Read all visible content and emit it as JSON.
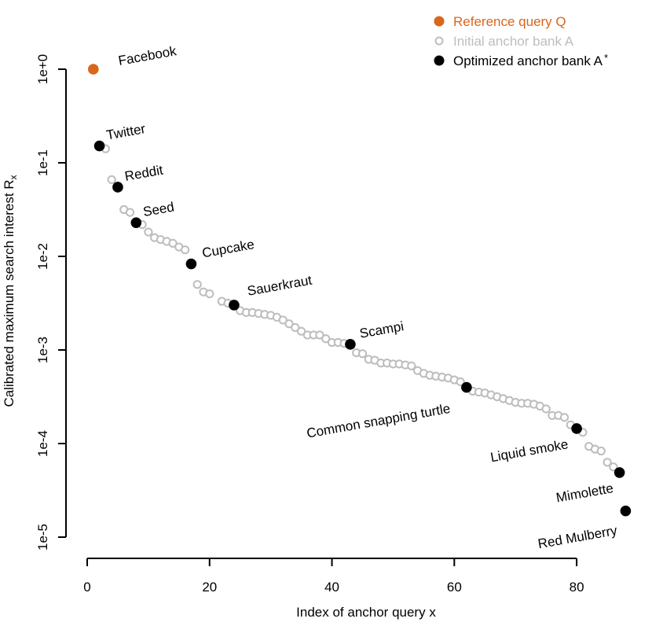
{
  "chart_data": {
    "type": "scatter",
    "title": "",
    "xlabel": "Index of anchor query x",
    "ylabel": "Calibrated maximum search interest R",
    "ylabel_subscript": "x",
    "xlim": [
      0,
      90
    ],
    "ylim_log10": [
      -5,
      0
    ],
    "x_ticks": [
      0,
      20,
      40,
      60,
      80
    ],
    "x_tick_labels": [
      "0",
      "20",
      "40",
      "60",
      "80"
    ],
    "y_ticks_log10": [
      0,
      -1,
      -2,
      -3,
      -4,
      -5
    ],
    "y_tick_labels": [
      "1e+0",
      "1e-1",
      "1e-2",
      "1e-3",
      "1e-4",
      "1e-5"
    ],
    "colors": {
      "reference": "#d9661a",
      "initial": "#bdbdbd",
      "optimized": "#000000"
    },
    "legend": {
      "position": "top-right",
      "items": [
        {
          "label": "Reference query Q",
          "color": "#d9661a",
          "style": "filled"
        },
        {
          "label": "Initial anchor bank A",
          "color": "#bdbdbd",
          "style": "open"
        },
        {
          "label": "Optimized anchor bank A",
          "label_suffix": "*",
          "color": "#000000",
          "style": "filled"
        }
      ]
    },
    "series": [
      {
        "name": "Reference query Q",
        "style": "filled",
        "color": "#d9661a",
        "points": [
          {
            "x": 1,
            "log10y": 0.0,
            "label": "Facebook"
          }
        ]
      },
      {
        "name": "Initial anchor bank A",
        "style": "open",
        "color": "#bdbdbd",
        "x": [
          3,
          4,
          6,
          7,
          9,
          10,
          11,
          12,
          13,
          14,
          15,
          16,
          18,
          19,
          20,
          22,
          23,
          25,
          26,
          27,
          28,
          29,
          30,
          31,
          32,
          33,
          34,
          35,
          36,
          37,
          38,
          39,
          40,
          41,
          42,
          44,
          45,
          46,
          47,
          48,
          49,
          50,
          51,
          52,
          53,
          54,
          55,
          56,
          57,
          58,
          59,
          60,
          61,
          63,
          64,
          65,
          66,
          67,
          68,
          69,
          70,
          71,
          72,
          73,
          74,
          75,
          76,
          77,
          78,
          79,
          81,
          82,
          83,
          84,
          85,
          86
        ],
        "log10y": [
          -0.85,
          -1.18,
          -1.5,
          -1.53,
          -1.66,
          -1.74,
          -1.8,
          -1.82,
          -1.84,
          -1.86,
          -1.9,
          -1.93,
          -2.3,
          -2.38,
          -2.4,
          -2.48,
          -2.5,
          -2.58,
          -2.6,
          -2.6,
          -2.61,
          -2.62,
          -2.63,
          -2.65,
          -2.68,
          -2.72,
          -2.76,
          -2.8,
          -2.84,
          -2.84,
          -2.84,
          -2.88,
          -2.92,
          -2.92,
          -2.93,
          -3.03,
          -3.04,
          -3.1,
          -3.11,
          -3.14,
          -3.14,
          -3.15,
          -3.15,
          -3.16,
          -3.17,
          -3.22,
          -3.25,
          -3.27,
          -3.28,
          -3.29,
          -3.3,
          -3.32,
          -3.34,
          -3.44,
          -3.45,
          -3.46,
          -3.48,
          -3.5,
          -3.52,
          -3.54,
          -3.56,
          -3.57,
          -3.57,
          -3.58,
          -3.6,
          -3.63,
          -3.7,
          -3.7,
          -3.72,
          -3.8,
          -3.88,
          -4.03,
          -4.06,
          -4.08,
          -4.2,
          -4.25
        ]
      },
      {
        "name": "Optimized anchor bank A*",
        "style": "filled",
        "color": "#000000",
        "points": [
          {
            "x": 2,
            "log10y": -0.82,
            "label": "Twitter"
          },
          {
            "x": 5,
            "log10y": -1.26,
            "label": "Reddit"
          },
          {
            "x": 8,
            "log10y": -1.64,
            "label": "Seed"
          },
          {
            "x": 17,
            "log10y": -2.08,
            "label": "Cupcake"
          },
          {
            "x": 24,
            "log10y": -2.52,
            "label": "Sauerkraut"
          },
          {
            "x": 43,
            "log10y": -2.94,
            "label": "Scampi"
          },
          {
            "x": 62,
            "log10y": -3.4,
            "label": "Common snapping turtle"
          },
          {
            "x": 80,
            "log10y": -3.84,
            "label": "Liquid smoke"
          },
          {
            "x": 87,
            "log10y": -4.31,
            "label": "Mimolette"
          },
          {
            "x": 88,
            "log10y": -4.72,
            "label": "Red Mulberry"
          }
        ]
      }
    ]
  }
}
